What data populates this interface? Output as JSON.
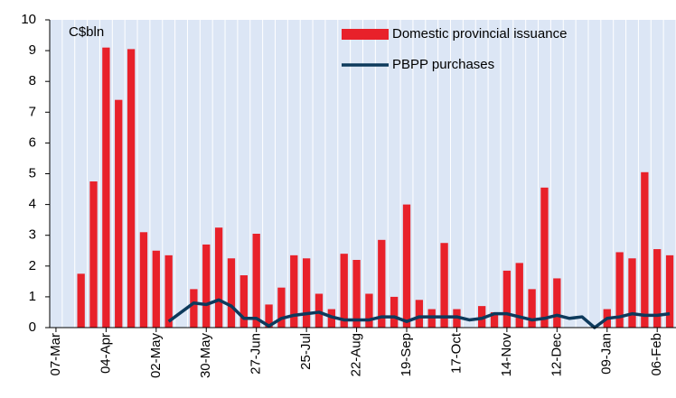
{
  "chart_data": {
    "type": "bar",
    "unit_label": "C$bln",
    "categories": [
      "07-Mar",
      null,
      null,
      null,
      "04-Apr",
      null,
      null,
      null,
      "02-May",
      null,
      null,
      null,
      "30-May",
      null,
      null,
      null,
      "27-Jun",
      null,
      null,
      null,
      "25-Jul",
      null,
      null,
      null,
      "22-Aug",
      null,
      null,
      null,
      "19-Sep",
      null,
      null,
      null,
      "17-Oct",
      null,
      null,
      null,
      "14-Nov",
      null,
      null,
      null,
      "12-Dec",
      null,
      null,
      null,
      "09-Jan",
      null,
      null,
      null,
      "06-Feb",
      null
    ],
    "series": [
      {
        "name": "Domestic provincial issuance",
        "type": "bar",
        "color": "#e8212a",
        "values": [
          null,
          null,
          1.75,
          4.75,
          9.1,
          7.4,
          9.05,
          3.1,
          2.5,
          2.35,
          null,
          1.25,
          2.7,
          3.25,
          2.25,
          1.7,
          3.05,
          0.75,
          1.3,
          2.35,
          2.25,
          1.1,
          0.6,
          2.4,
          2.2,
          1.1,
          2.85,
          1.0,
          4.0,
          0.9,
          0.6,
          2.75,
          0.6,
          null,
          0.7,
          0.5,
          1.85,
          2.1,
          1.25,
          4.55,
          1.6,
          null,
          null,
          null,
          0.6,
          2.45,
          2.25,
          5.05,
          2.55,
          2.35
        ]
      },
      {
        "name": "PBPP purchases",
        "type": "line",
        "color": "#0d3a5c",
        "values": [
          null,
          null,
          null,
          null,
          null,
          null,
          null,
          null,
          null,
          0.2,
          0.5,
          0.8,
          0.75,
          0.9,
          0.7,
          0.3,
          0.3,
          0.05,
          0.3,
          0.4,
          0.45,
          0.5,
          0.35,
          0.25,
          0.25,
          0.25,
          0.35,
          0.35,
          0.2,
          0.35,
          0.35,
          0.35,
          0.35,
          0.25,
          0.3,
          0.45,
          0.45,
          0.35,
          0.25,
          0.3,
          0.4,
          0.3,
          0.35,
          0.0,
          0.3,
          0.35,
          0.45,
          0.4,
          0.4,
          0.45
        ]
      }
    ],
    "ylim": [
      0,
      10
    ],
    "yticks": [
      0,
      1,
      2,
      3,
      4,
      5,
      6,
      7,
      8,
      9,
      10
    ],
    "legend": "top-right",
    "background": "#dce6f5"
  }
}
